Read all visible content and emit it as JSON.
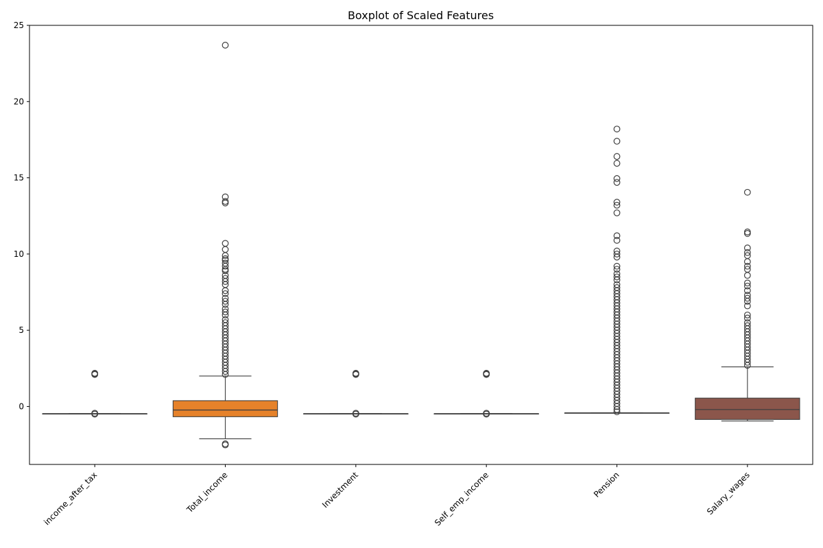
{
  "chart_data": {
    "type": "boxplot",
    "title": "Boxplot of Scaled Features",
    "xlabel": "",
    "ylabel": "",
    "ylim": [
      -3.8,
      25
    ],
    "yticks": [
      0,
      5,
      10,
      15,
      20,
      25
    ],
    "grid": false,
    "categories": [
      "income_after_tax",
      "Total_income",
      "Investment",
      "Self_emp_income",
      "Pension",
      "Salary_wages"
    ],
    "colors": [
      "#1f77b4",
      "#e6822a",
      "#2ca02c",
      "#d62728",
      "#9467bd",
      "#8b564b"
    ],
    "edge_color": "#3f3f3f",
    "boxes": [
      {
        "name": "income_after_tax",
        "whislo": -0.47,
        "q1": -0.47,
        "median": -0.47,
        "q3": -0.47,
        "whishi": -0.47,
        "fliers": [
          2.1,
          2.14,
          2.18,
          -0.5,
          -0.44
        ]
      },
      {
        "name": "Total_income",
        "whislo": -2.12,
        "q1": -0.67,
        "median": -0.23,
        "q3": 0.38,
        "whishi": 2.0,
        "fliers": [
          -2.45,
          -2.52,
          2.1,
          2.3,
          2.5,
          2.7,
          2.9,
          3.1,
          3.3,
          3.5,
          3.7,
          3.9,
          4.1,
          4.3,
          4.5,
          4.7,
          4.9,
          5.1,
          5.3,
          5.5,
          5.7,
          6.0,
          6.2,
          6.4,
          6.7,
          6.9,
          7.1,
          7.4,
          7.6,
          8.0,
          8.2,
          8.4,
          8.6,
          8.9,
          9.0,
          9.2,
          9.4,
          9.6,
          9.7,
          9.9,
          10.3,
          10.7,
          13.35,
          13.45,
          13.75,
          23.7
        ]
      },
      {
        "name": "Investment",
        "whislo": -0.47,
        "q1": -0.47,
        "median": -0.47,
        "q3": -0.47,
        "whishi": -0.47,
        "fliers": [
          2.1,
          2.14,
          2.18,
          -0.5,
          -0.44
        ]
      },
      {
        "name": "Self_emp_income",
        "whislo": -0.47,
        "q1": -0.47,
        "median": -0.47,
        "q3": -0.47,
        "whishi": -0.47,
        "fliers": [
          2.1,
          2.14,
          2.18,
          -0.5,
          -0.44
        ]
      },
      {
        "name": "Pension",
        "whislo": -0.42,
        "q1": -0.42,
        "median": -0.42,
        "q3": -0.42,
        "whishi": -0.42,
        "fliers": [
          -0.35,
          -0.2,
          0.0,
          0.2,
          0.4,
          0.6,
          0.8,
          1.0,
          1.2,
          1.4,
          1.6,
          1.8,
          2.0,
          2.2,
          2.4,
          2.6,
          2.8,
          3.0,
          3.2,
          3.4,
          3.6,
          3.8,
          4.0,
          4.2,
          4.4,
          4.6,
          4.8,
          5.0,
          5.2,
          5.4,
          5.6,
          5.8,
          6.0,
          6.2,
          6.4,
          6.6,
          6.8,
          7.0,
          7.2,
          7.4,
          7.6,
          7.8,
          8.0,
          8.3,
          8.5,
          8.7,
          9.0,
          9.2,
          9.8,
          10.0,
          10.2,
          10.9,
          11.2,
          12.7,
          13.2,
          13.4,
          14.7,
          14.95,
          15.95,
          16.4,
          17.4,
          18.2
        ]
      },
      {
        "name": "Salary_wages",
        "whislo": -0.95,
        "q1": -0.85,
        "median": -0.2,
        "q3": 0.55,
        "whishi": 2.6,
        "fliers": [
          2.7,
          2.9,
          3.1,
          3.3,
          3.5,
          3.7,
          3.9,
          4.1,
          4.3,
          4.5,
          4.7,
          4.9,
          5.1,
          5.3,
          5.5,
          5.8,
          6.0,
          6.6,
          6.9,
          7.1,
          7.3,
          7.6,
          7.9,
          8.1,
          8.6,
          9.0,
          9.2,
          9.5,
          9.9,
          10.1,
          10.4,
          11.35,
          11.45,
          14.05
        ]
      }
    ]
  }
}
